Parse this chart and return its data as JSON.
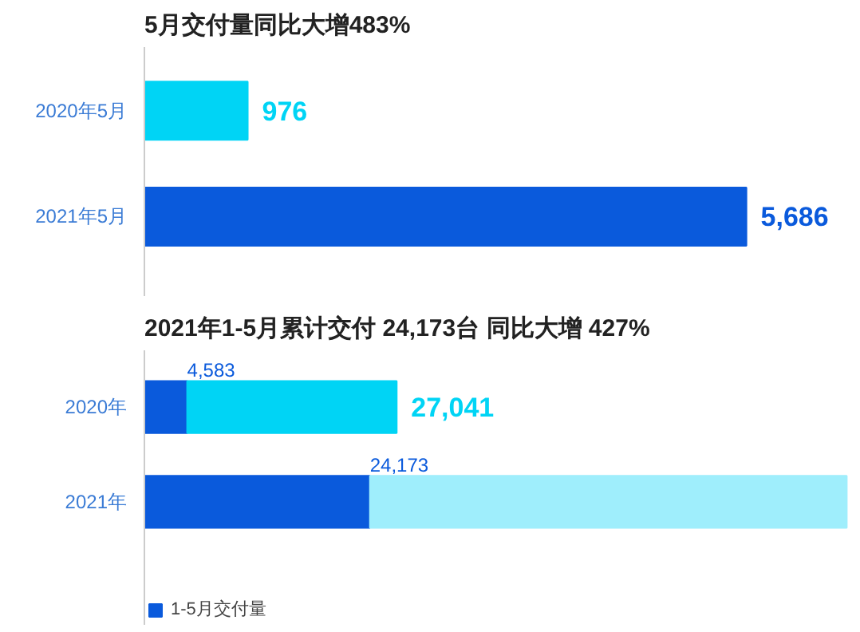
{
  "chart_data": [
    {
      "type": "bar",
      "orientation": "horizontal",
      "title": "5月交付量同比大增483%",
      "categories": [
        "2020年5月",
        "2021年5月"
      ],
      "values": [
        976,
        5686
      ],
      "colors": [
        "#00d4f5",
        "#0a5adc"
      ],
      "value_labels": [
        "976",
        "5,686"
      ],
      "tick_labels": "y"
    },
    {
      "type": "bar",
      "orientation": "horizontal",
      "stacked": true,
      "title": "2021年1-5月累计交付 24,173台  同比大增 427%",
      "categories": [
        "2020年",
        "2021年"
      ],
      "series": [
        {
          "name": "1-5月交付量",
          "color": "#0a5adc",
          "values": [
            4583,
            24173
          ],
          "value_labels": [
            "4,583",
            "24,173"
          ]
        },
        {
          "color": "#00d4f5",
          "values": [
            22458,
            null
          ]
        },
        {
          "color": "#9feefc",
          "values": [
            null,
            51100
          ]
        }
      ],
      "totals": [
        "27,041",
        null
      ],
      "tick_labels": "y",
      "legend": "bottom left"
    }
  ]
}
